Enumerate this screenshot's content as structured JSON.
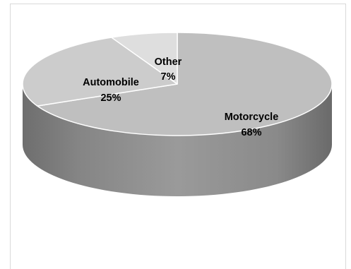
{
  "chart_data": {
    "type": "pie",
    "style": "3d",
    "slices": [
      {
        "label": "Motorcycle",
        "value": 68,
        "display": "68%",
        "color": "#bfbfbf"
      },
      {
        "label": "Automobile",
        "value": 25,
        "display": "25%",
        "color": "#cccccc"
      },
      {
        "label": "Other",
        "value": 7,
        "display": "7%",
        "color": "#dedede"
      }
    ],
    "data_labels": "inside",
    "legend": "none"
  }
}
